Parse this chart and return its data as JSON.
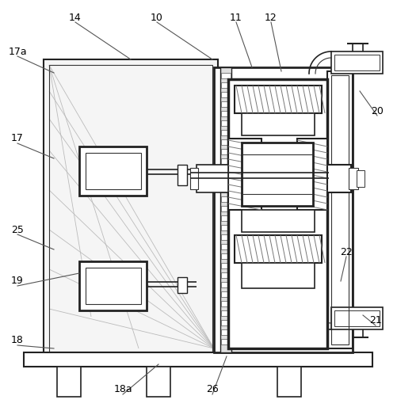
{
  "line_color": "#333333",
  "dark_color": "#222222",
  "hatch_color": "#666666",
  "label_color": "#000000",
  "labels_with_lines": [
    [
      "14",
      95,
      22,
      165,
      75
    ],
    [
      "10",
      198,
      22,
      268,
      75
    ],
    [
      "11",
      298,
      22,
      318,
      85
    ],
    [
      "12",
      342,
      22,
      355,
      90
    ],
    [
      "17a",
      22,
      65,
      68,
      92
    ],
    [
      "17",
      22,
      175,
      68,
      200
    ],
    [
      "25",
      22,
      290,
      68,
      315
    ],
    [
      "19",
      22,
      355,
      100,
      345
    ],
    [
      "18",
      22,
      430,
      68,
      440
    ],
    [
      "18a",
      155,
      492,
      200,
      460
    ],
    [
      "26",
      268,
      492,
      286,
      450
    ],
    [
      "20",
      476,
      140,
      454,
      115
    ],
    [
      "21",
      474,
      405,
      458,
      398
    ],
    [
      "22",
      437,
      318,
      430,
      355
    ]
  ]
}
